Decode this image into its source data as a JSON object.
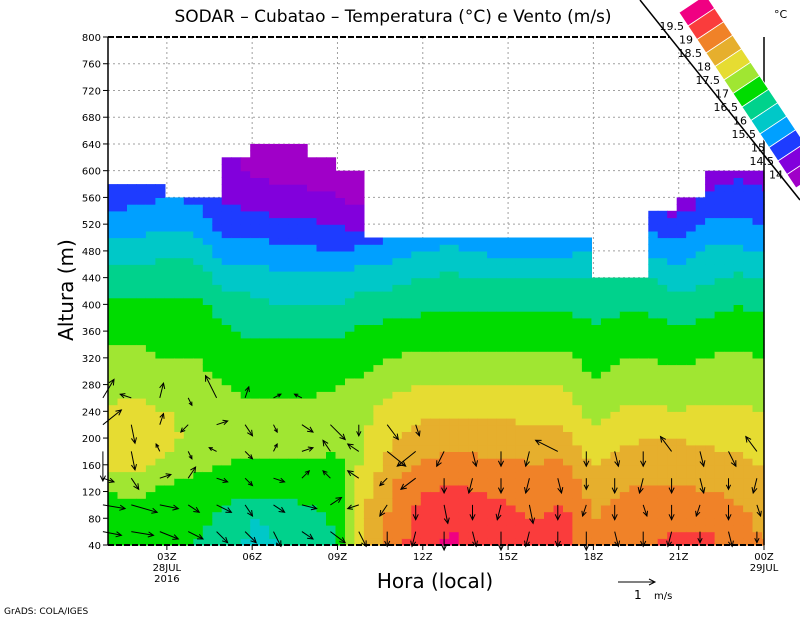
{
  "chart_data": {
    "type": "heatmap",
    "title": "SODAR – Cubatao – Temperatura (°C) e Vento (m/s)",
    "xlabel": "Hora (local)",
    "ylabel": "Altura (m)",
    "xlim_hours": [
      0.93,
      24
    ],
    "ylim": [
      40,
      800
    ],
    "grid": true,
    "y_ticks": [
      40,
      80,
      120,
      160,
      200,
      240,
      280,
      320,
      360,
      400,
      440,
      480,
      520,
      560,
      600,
      640,
      680,
      720,
      760,
      800
    ],
    "x_ticks": [
      {
        "hour": 3,
        "label": "03Z",
        "sub": [
          "28JUL",
          "2016"
        ]
      },
      {
        "hour": 6,
        "label": "06Z",
        "sub": []
      },
      {
        "hour": 9,
        "label": "09Z",
        "sub": []
      },
      {
        "hour": 12,
        "label": "12Z",
        "sub": []
      },
      {
        "hour": 15,
        "label": "15Z",
        "sub": []
      },
      {
        "hour": 18,
        "label": "18Z",
        "sub": []
      },
      {
        "hour": 21,
        "label": "21Z",
        "sub": []
      },
      {
        "hour": 24,
        "label": "00Z",
        "sub": [
          "29JUL"
        ]
      }
    ],
    "hours": [
      1,
      2,
      3,
      4,
      5,
      6,
      7,
      8,
      9,
      10,
      11,
      12,
      13,
      14,
      15,
      16,
      17,
      18,
      19,
      20,
      21,
      22,
      23,
      24
    ],
    "heights_m": [
      40,
      80,
      120,
      160,
      200,
      240,
      280,
      320,
      360,
      400,
      440,
      480,
      520,
      560,
      600,
      640
    ],
    "temperature_c": [
      [
        16.8,
        16.6,
        16.5,
        16.5,
        16.3,
        15.9,
        16.0,
        16.2,
        16.5,
        18.0,
        18.8,
        19.3,
        19.6,
        19.4,
        19.2,
        19.1,
        19.2,
        18.6,
        18.8,
        19.0,
        19.1,
        19.1,
        18.9,
        18.6
      ],
      [
        16.8,
        16.6,
        16.6,
        16.6,
        16.4,
        15.9,
        16.2,
        16.3,
        16.6,
        18.0,
        18.7,
        19.2,
        19.4,
        19.3,
        19.1,
        19.0,
        19.1,
        18.5,
        18.7,
        18.9,
        18.9,
        18.9,
        18.7,
        18.3
      ],
      [
        17.0,
        17.2,
        16.8,
        16.8,
        16.7,
        16.6,
        16.6,
        16.7,
        16.8,
        17.9,
        18.6,
        19.0,
        19.1,
        19.0,
        18.9,
        18.8,
        18.9,
        18.3,
        18.5,
        18.6,
        18.6,
        18.5,
        18.4,
        18.2
      ],
      [
        17.6,
        17.6,
        17.4,
        17.1,
        17.0,
        16.9,
        16.9,
        16.9,
        16.9,
        17.7,
        18.3,
        18.6,
        18.7,
        18.6,
        18.6,
        18.5,
        18.6,
        18.0,
        18.2,
        18.3,
        18.3,
        18.2,
        18.1,
        18.0
      ],
      [
        17.7,
        17.7,
        17.6,
        17.4,
        17.2,
        17.3,
        17.3,
        17.3,
        17.1,
        17.5,
        18.0,
        18.2,
        18.3,
        18.3,
        18.2,
        18.2,
        18.2,
        17.6,
        17.9,
        18.0,
        18.0,
        17.9,
        17.9,
        17.8
      ],
      [
        17.6,
        17.6,
        17.5,
        17.4,
        17.2,
        17.1,
        17.1,
        17.1,
        17.1,
        17.4,
        17.8,
        17.9,
        17.9,
        17.9,
        17.9,
        17.8,
        17.8,
        17.3,
        17.6,
        17.6,
        17.5,
        17.6,
        17.6,
        17.5
      ],
      [
        17.3,
        17.4,
        17.3,
        17.2,
        17.0,
        16.9,
        16.9,
        16.9,
        17.0,
        17.1,
        17.4,
        17.5,
        17.5,
        17.5,
        17.5,
        17.5,
        17.5,
        17.0,
        17.3,
        17.3,
        17.2,
        17.3,
        17.3,
        17.3
      ],
      [
        17.1,
        17.1,
        17.0,
        17.0,
        16.8,
        16.7,
        16.7,
        16.7,
        16.7,
        16.9,
        17.0,
        17.1,
        17.1,
        17.1,
        17.1,
        17.1,
        17.1,
        16.8,
        17.0,
        17.0,
        16.9,
        17.0,
        17.1,
        17.0
      ],
      [
        16.9,
        16.9,
        16.8,
        16.8,
        16.6,
        16.4,
        16.4,
        16.4,
        16.4,
        16.6,
        16.7,
        16.7,
        16.7,
        16.7,
        16.7,
        16.7,
        16.7,
        16.6,
        16.7,
        16.7,
        16.6,
        16.7,
        16.8,
        16.7
      ],
      [
        16.6,
        16.6,
        16.6,
        16.6,
        16.3,
        16.1,
        16.0,
        16.0,
        16.0,
        16.2,
        16.3,
        16.4,
        16.4,
        16.4,
        16.4,
        16.4,
        16.4,
        16.3,
        16.4,
        16.4,
        16.2,
        16.3,
        16.5,
        16.4
      ],
      [
        16.2,
        16.2,
        16.3,
        16.3,
        15.8,
        15.8,
        15.6,
        15.6,
        15.6,
        15.8,
        15.8,
        16.0,
        16.1,
        16.0,
        16.0,
        16.0,
        16.0,
        16.0,
        16.1,
        16.0,
        15.8,
        15.9,
        16.1,
        16.0
      ],
      [
        15.7,
        15.8,
        15.9,
        15.8,
        15.3,
        15.3,
        15.1,
        15.1,
        15.0,
        15.2,
        15.3,
        15.5,
        15.6,
        15.5,
        15.3,
        15.4,
        15.4,
        null,
        null,
        15.4,
        15.2,
        15.6,
        15.6,
        15.5
      ],
      [
        15.2,
        15.3,
        15.4,
        15.3,
        14.8,
        14.7,
        14.6,
        14.6,
        14.5,
        14.2,
        14.8,
        15.0,
        15.1,
        15.0,
        14.8,
        14.9,
        14.9,
        null,
        null,
        14.8,
        14.8,
        15.1,
        15.1,
        15.0
      ],
      [
        14.8,
        14.9,
        15.0,
        14.9,
        14.4,
        14.3,
        14.2,
        14.1,
        14.0,
        13.8,
        null,
        null,
        null,
        null,
        null,
        null,
        null,
        null,
        null,
        14.2,
        13.9,
        14.6,
        14.7,
        14.6
      ],
      [
        14.5,
        null,
        null,
        null,
        14.2,
        13.9,
        13.8,
        13.8,
        13.9,
        13.7,
        null,
        null,
        null,
        null,
        null,
        null,
        null,
        null,
        null,
        null,
        null,
        14.3,
        14.4,
        14.3
      ],
      [
        null,
        null,
        null,
        null,
        null,
        13.8,
        13.7,
        13.7,
        null,
        null,
        null,
        null,
        null,
        null,
        null,
        null,
        null,
        null,
        null,
        null,
        null,
        null,
        null,
        null
      ]
    ],
    "data_top": [
      {
        "from": 0.93,
        "to": 3,
        "top_m": 580
      },
      {
        "from": 3,
        "to": 5,
        "top_m": 560
      },
      {
        "from": 5,
        "to": 6,
        "top_m": 620
      },
      {
        "from": 6,
        "to": 8,
        "top_m": 640
      },
      {
        "from": 8,
        "to": 9,
        "top_m": 620
      },
      {
        "from": 9,
        "to": 10,
        "top_m": 600
      },
      {
        "from": 10,
        "to": 18,
        "top_m": 500
      },
      {
        "from": 18,
        "to": 20,
        "top_m": 440
      },
      {
        "from": 20,
        "to": 21,
        "top_m": 540
      },
      {
        "from": 21,
        "to": 22,
        "top_m": 560
      },
      {
        "from": 22,
        "to": 24,
        "top_m": 600
      }
    ],
    "wind_heights_m": [
      60,
      100,
      140,
      180,
      220,
      260
    ],
    "wind_uv_ms": [
      [
        [
          0.5,
          -0.1
        ],
        [
          0.6,
          -0.1
        ],
        [
          0.5,
          -0.2
        ],
        [
          0.4,
          -0.2
        ],
        [
          0.3,
          -0.3
        ],
        [
          0.3,
          -0.3
        ],
        [
          0.2,
          -0.4
        ],
        [
          0.3,
          -0.2
        ],
        [
          0.4,
          -0.3
        ],
        [
          0.2,
          -0.4
        ],
        [
          0,
          -0.4
        ],
        [
          -0.1,
          -0.4
        ],
        [
          0,
          -0.5
        ],
        [
          0.1,
          -0.4
        ],
        [
          0,
          -0.5
        ],
        [
          -0.1,
          -0.4
        ],
        [
          0,
          -0.4
        ],
        [
          0,
          -0.5
        ],
        [
          0.1,
          -0.4
        ],
        [
          0,
          -0.4
        ],
        [
          -0.1,
          -0.4
        ],
        [
          0,
          -0.3
        ],
        [
          0.1,
          -0.4
        ],
        [
          0,
          -0.3
        ]
      ],
      [
        [
          0.6,
          -0.1
        ],
        [
          0.7,
          -0.2
        ],
        [
          0.5,
          -0.1
        ],
        [
          0.3,
          -0.2
        ],
        [
          0.4,
          -0.2
        ],
        [
          0.2,
          -0.3
        ],
        [
          0.3,
          -0.2
        ],
        [
          0.4,
          -0.1
        ],
        [
          0.3,
          0.2
        ],
        [
          -0.3,
          -0.1
        ],
        [
          -0.2,
          -0.3
        ],
        [
          0,
          -0.4
        ],
        [
          0.1,
          -0.5
        ],
        [
          0,
          -0.4
        ],
        [
          -0.1,
          -0.4
        ],
        [
          0.1,
          -0.5
        ],
        [
          0,
          -0.4
        ],
        [
          -0.1,
          -0.3
        ],
        [
          0,
          -0.4
        ],
        [
          0.1,
          -0.3
        ],
        [
          0,
          -0.4
        ],
        [
          -0.1,
          -0.3
        ],
        [
          0,
          -0.4
        ],
        [
          0.1,
          -0.3
        ]
      ],
      [
        [
          0.3,
          -0.1
        ],
        [
          0.2,
          -0.3
        ],
        [
          0.3,
          0.1
        ],
        [
          0.2,
          0.3
        ],
        [
          0.3,
          -0.1
        ],
        [
          0.2,
          -0.2
        ],
        [
          0.3,
          -0.1
        ],
        [
          0.2,
          0.2
        ],
        [
          -0.2,
          0.2
        ],
        [
          -0.3,
          0.2
        ],
        [
          -0.2,
          -0.2
        ],
        [
          -0.4,
          -0.3
        ],
        [
          0,
          -0.4
        ],
        [
          -0.1,
          -0.4
        ],
        [
          0,
          -0.4
        ],
        [
          -0.1,
          -0.4
        ],
        [
          0.1,
          -0.4
        ],
        [
          0,
          -0.3
        ],
        [
          0,
          -0.4
        ],
        [
          -0.1,
          -0.4
        ],
        [
          0,
          -0.4
        ],
        [
          0.1,
          -0.4
        ],
        [
          0,
          -0.3
        ],
        [
          -0.1,
          -0.4
        ]
      ],
      [
        [
          0,
          -0.8
        ],
        [
          0.1,
          -0.5
        ],
        [
          -0.1,
          0.2
        ],
        [
          0.1,
          -0.2
        ],
        [
          -0.2,
          0.1
        ],
        [
          0.2,
          -0.2
        ],
        [
          0.1,
          0.2
        ],
        [
          0.3,
          0.1
        ],
        [
          -0.2,
          0.3
        ],
        [
          -0.3,
          0.2
        ],
        [
          0.5,
          -0.4
        ],
        [
          -0.5,
          -0.4
        ],
        [
          -0.2,
          -0.4
        ],
        [
          0.1,
          -0.4
        ],
        [
          0,
          -0.4
        ],
        [
          -0.1,
          -0.4
        ],
        [
          -0.6,
          0.3
        ],
        [
          0,
          -0.4
        ],
        [
          0.1,
          -0.4
        ],
        [
          0,
          -0.4
        ],
        [
          -0.3,
          0.4
        ],
        [
          0.1,
          -0.4
        ],
        [
          0.2,
          -0.4
        ],
        [
          -0.3,
          0.4
        ]
      ],
      [
        [
          0.5,
          0.4
        ],
        [
          0.1,
          -0.5
        ],
        [
          0.1,
          0.3
        ],
        [
          -0.2,
          -0.2
        ],
        [
          0.3,
          0.1
        ],
        [
          0.2,
          -0.3
        ],
        [
          0.1,
          -0.2
        ],
        [
          0.3,
          -0.2
        ],
        [
          0.4,
          -0.4
        ],
        [
          0,
          -0.3
        ],
        [
          0.3,
          -0.4
        ],
        [
          0.1,
          -0.3
        ],
        null,
        null,
        null,
        null,
        null,
        null,
        null,
        null,
        null,
        null,
        null,
        null
      ],
      [
        [
          0.3,
          0.5
        ],
        [
          -0.3,
          0.1
        ],
        [
          0.1,
          0.4
        ],
        [
          0.1,
          -0.2
        ],
        [
          -0.3,
          0.6
        ],
        [
          0.1,
          0.3
        ],
        [
          0.2,
          0.1
        ],
        [
          -0.2,
          0.1
        ],
        null,
        null,
        null,
        null,
        null,
        null,
        null,
        null,
        null,
        null,
        null,
        null,
        null,
        null,
        null,
        null
      ]
    ],
    "wind_reference": {
      "speed_ms": 1,
      "label": "1",
      "unit": "m/s"
    },
    "colorbar": {
      "unit": "°C",
      "levels": [
        14,
        14.5,
        15,
        15.5,
        16,
        16.5,
        17,
        17.5,
        18,
        18.5,
        19,
        19.5
      ],
      "level_labels": [
        "14",
        "14.5",
        "15",
        "15.5",
        "16",
        "16.5",
        "17",
        "17.5",
        "18",
        "18.5",
        "19",
        "19.5"
      ],
      "colors": [
        "#a000c8",
        "#8200dc",
        "#1e3cff",
        "#00a0ff",
        "#00c8c8",
        "#00d28c",
        "#00dc00",
        "#a0e632",
        "#e6dc32",
        "#e6af2d",
        "#f08228",
        "#fa3c3c",
        "#f00082"
      ]
    }
  },
  "credit": "GrADS: COLA/IGES"
}
